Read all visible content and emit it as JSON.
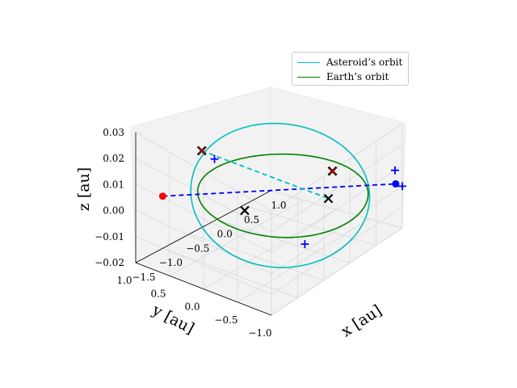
{
  "chart_data": {
    "type": "line",
    "projection": "3d",
    "xlabel": "x [au]",
    "ylabel": "y [au]",
    "zlabel": "z [au]",
    "x_ticks": [
      "−1.5",
      "−1.0",
      "−0.5",
      "0.0",
      "0.5",
      "1.0"
    ],
    "y_ticks": [
      "1.0",
      "0.5",
      "0.0",
      "−0.5",
      "−1.0"
    ],
    "z_ticks": [
      "0.03",
      "0.02",
      "0.01",
      "0.00",
      "−0.01",
      "−0.02"
    ],
    "xlim": [
      -1.5,
      1.0
    ],
    "ylim": [
      -1.0,
      1.0
    ],
    "zlim": [
      -0.02,
      0.03
    ],
    "grid": true,
    "legend_position": "top-right",
    "series": [
      {
        "name": "Asteroid’s orbit",
        "color": "#00bfbf",
        "style": "solid",
        "semi_major_axis": 1.12,
        "semi_minor_axis": 1.0,
        "inclination_amplitude": 0.012
      },
      {
        "name": "Earth’s orbit",
        "color": "#008000",
        "style": "solid",
        "radius": 1.0,
        "z": 0.0
      },
      {
        "color": "#0000ff",
        "style": "dashed",
        "x": [
          -1.0,
          1.0
        ],
        "y": [
          1.0,
          -0.9
        ],
        "z": [
          0.0,
          0.0
        ]
      },
      {
        "color": "#00bfbf",
        "style": "dashed",
        "x": [
          -0.4,
          0.6
        ],
        "y": [
          0.9,
          -0.2
        ],
        "z": [
          0.012,
          -0.008
        ]
      }
    ],
    "markers": {
      "red_point": {
        "x": -1.0,
        "y": 1.0,
        "z": 0.0,
        "color": "#ff0000"
      },
      "blue_point": {
        "x": 1.0,
        "y": -0.9,
        "z": 0.0,
        "color": "#0000ff"
      },
      "blue_plus": [
        {
          "x": -0.35,
          "y": 0.75,
          "z": 0.01
        },
        {
          "x": -0.35,
          "y": -0.6,
          "z": -0.01
        },
        {
          "x": 1.05,
          "y": -0.85,
          "z": 0.005
        },
        {
          "x": 1.0,
          "y": -1.0,
          "z": 0.0
        }
      ],
      "black_x": [
        {
          "x": -0.6,
          "y": 0.1,
          "z": 0.0
        },
        {
          "x": 0.6,
          "y": -0.2,
          "z": -0.008
        }
      ],
      "red_x": [
        {
          "x": -0.4,
          "y": 0.9,
          "z": 0.012
        },
        {
          "x": 0.3,
          "y": -0.5,
          "z": 0.012
        }
      ]
    }
  }
}
